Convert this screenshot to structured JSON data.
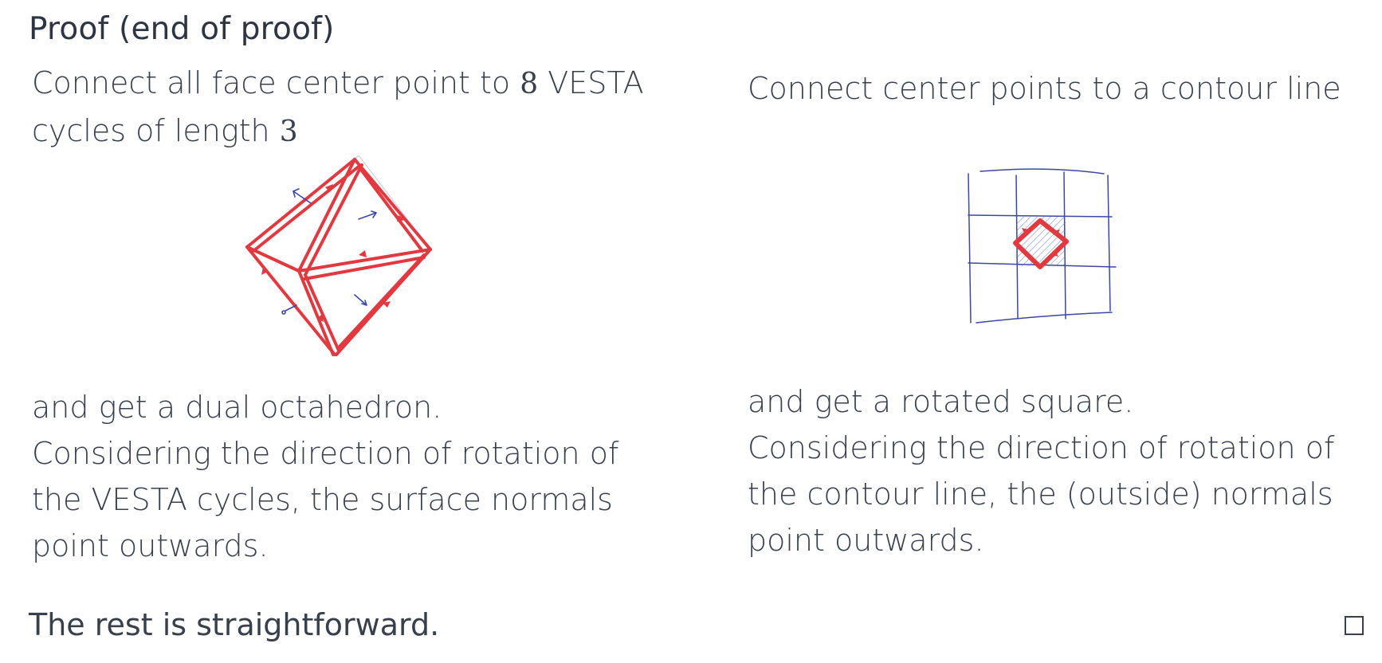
{
  "title": "Proof (end of proof)",
  "left": {
    "intro_text": "Connect all face center point to ",
    "intro_num": "8",
    "intro_text2": " VESTA cycles of length ",
    "intro_num2": "3",
    "figure_icon": "octahedron-sketch-icon",
    "outro_line1": "and get a dual octahedron.",
    "outro_line2": "Considering the direction of rotation of the VESTA cycles, the surface normals point outwards."
  },
  "right": {
    "intro_text": "Connect center points to a contour line",
    "figure_icon": "grid-rotated-square-sketch-icon",
    "outro_line1": "and get a rotated square.",
    "outro_line2": "Considering the direction of rotation of the contour line, the (outside) normals point outwards."
  },
  "closing": "The rest is straightforward.",
  "qed_icon": "qed-square-icon",
  "colors": {
    "text": "#38404c",
    "sketch_red": "#e2383f",
    "sketch_blue": "#3b47a8"
  }
}
